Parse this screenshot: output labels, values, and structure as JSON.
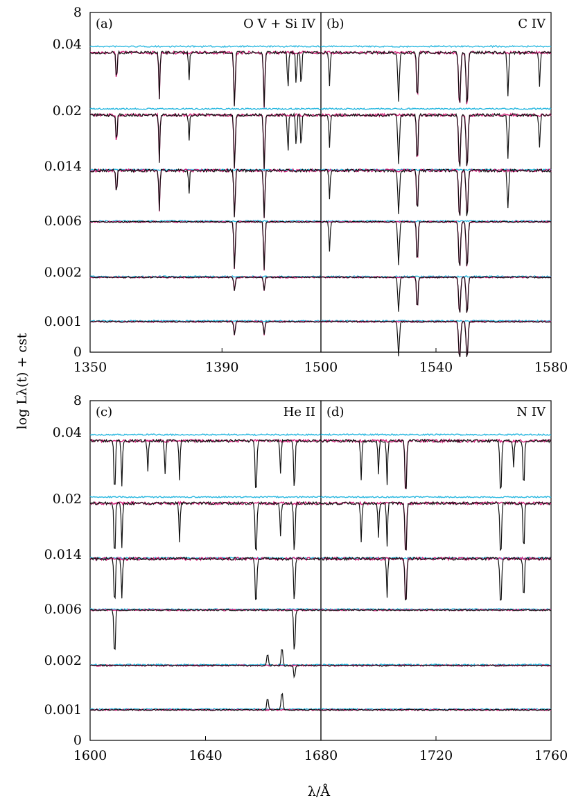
{
  "figure": {
    "ylabel": "log Lλ(t) + cst",
    "xlabel": "λ/Å"
  },
  "colors": {
    "black_spectrum": "#111111",
    "magenta_spectrum": "#d2227a",
    "cyan_spectrum": "#2ab8e0",
    "axes": "#000000"
  },
  "chart_data": [
    {
      "type": "line",
      "panel": "(a)",
      "ion": "O V + Si IV",
      "xtick_labels": [
        "1350",
        "1390"
      ],
      "ytick_labels": [
        "8",
        "0.04",
        "0.02",
        "0.014",
        "0.006",
        "0.002",
        "0.001",
        "0"
      ],
      "xlim": [
        1350,
        1420
      ],
      "ages": [
        8,
        0.04,
        0.02,
        0.014,
        0.006,
        0.002,
        0.001,
        0
      ],
      "lines": [
        {
          "center": 1358.0,
          "depth": 0.55,
          "width": 0.25,
          "color": "magenta",
          "from_age": 0.014
        },
        {
          "center": 1371.0,
          "depth": 0.85,
          "width": 0.25,
          "color": "magenta",
          "from_age": 0.014
        },
        {
          "center": 1380.0,
          "depth": 0.5,
          "width": 0.22,
          "color": "black",
          "from_age": 0.014
        },
        {
          "center": 1393.8,
          "depth": 1.0,
          "width": 0.3,
          "color": "magenta",
          "from_age": 0.001
        },
        {
          "center": 1402.8,
          "depth": 1.0,
          "width": 0.3,
          "color": "magenta",
          "from_age": 0.001
        },
        {
          "center": 1410.0,
          "depth": 0.7,
          "width": 0.25,
          "color": "black",
          "from_age": 0.02
        },
        {
          "center": 1412.5,
          "depth": 0.6,
          "width": 0.25,
          "color": "black",
          "from_age": 0.02
        },
        {
          "center": 1414.0,
          "depth": 0.65,
          "width": 0.25,
          "color": "black",
          "from_age": 0.02
        }
      ]
    },
    {
      "type": "line",
      "panel": "(b)",
      "ion": "C IV",
      "xtick_labels": [
        "1500",
        "1540",
        "1580"
      ],
      "xlim": [
        1500,
        1580
      ],
      "lines": [
        {
          "center": 1503.0,
          "depth": 0.6,
          "width": 0.3,
          "color": "black",
          "from_age": 0.006
        },
        {
          "center": 1527.0,
          "depth": 0.9,
          "width": 0.4,
          "color": "black",
          "from_age": 0.001
        },
        {
          "center": 1533.5,
          "depth": 0.9,
          "width": 0.35,
          "color": "magenta",
          "from_age": 0.002
        },
        {
          "center": 1548.2,
          "depth": 1.0,
          "width": 0.45,
          "color": "magenta",
          "from_age": 0.001
        },
        {
          "center": 1550.8,
          "depth": 1.0,
          "width": 0.45,
          "color": "magenta",
          "from_age": 0.001
        },
        {
          "center": 1565.0,
          "depth": 0.8,
          "width": 0.35,
          "color": "black",
          "from_age": 0.014
        },
        {
          "center": 1576.0,
          "depth": 0.6,
          "width": 0.3,
          "color": "black",
          "from_age": 0.02
        }
      ]
    },
    {
      "type": "line",
      "panel": "(c)",
      "ion": "He II",
      "xtick_labels": [
        "1600",
        "1640"
      ],
      "ytick_labels": [
        "8",
        "0.04",
        "0.02",
        "0.014",
        "0.006",
        "0.002",
        "0.001",
        "0"
      ],
      "xlim": [
        1600,
        1680
      ],
      "lines": [
        {
          "center": 1608.5,
          "depth": 1.0,
          "width": 0.35,
          "color": "black",
          "from_age": 0.006
        },
        {
          "center": 1611.0,
          "depth": 0.8,
          "width": 0.3,
          "color": "black",
          "from_age": 0.014
        },
        {
          "center": 1620.0,
          "depth": 0.55,
          "width": 0.3,
          "color": "black",
          "from_age": 0.04
        },
        {
          "center": 1626.0,
          "depth": 0.6,
          "width": 0.3,
          "color": "black",
          "from_age": 0.04
        },
        {
          "center": 1631.0,
          "depth": 0.7,
          "width": 0.3,
          "color": "black",
          "from_age": 0.02
        },
        {
          "center": 1657.5,
          "depth": 1.0,
          "width": 0.4,
          "color": "black",
          "from_age": 0.014
        },
        {
          "center": 1666.0,
          "depth": 0.6,
          "width": 0.3,
          "color": "black",
          "from_age": 0.02
        },
        {
          "center": 1670.8,
          "depth": 0.95,
          "width": 0.35,
          "color": "black",
          "from_age": 0.002
        },
        {
          "center": 1661.5,
          "depth": -0.9,
          "width": 0.4,
          "color": "black",
          "from_age": 0.001,
          "until_age": 0.002
        },
        {
          "center": 1666.5,
          "depth": -1.4,
          "width": 0.4,
          "color": "black",
          "from_age": 0.001,
          "until_age": 0.002
        }
      ]
    },
    {
      "type": "line",
      "panel": "(d)",
      "ion": "N IV",
      "xtick_labels": [
        "1680",
        "1720",
        "1760"
      ],
      "xlim": [
        1680,
        1760
      ],
      "lines": [
        {
          "center": 1694.0,
          "depth": 0.7,
          "width": 0.3,
          "color": "black",
          "from_age": 0.02
        },
        {
          "center": 1700.0,
          "depth": 0.6,
          "width": 0.3,
          "color": "black",
          "from_age": 0.02
        },
        {
          "center": 1703.0,
          "depth": 0.8,
          "width": 0.3,
          "color": "black",
          "from_age": 0.014
        },
        {
          "center": 1709.5,
          "depth": 1.0,
          "width": 0.4,
          "color": "magenta",
          "from_age": 0.014
        },
        {
          "center": 1742.5,
          "depth": 1.0,
          "width": 0.4,
          "color": "black",
          "from_age": 0.014
        },
        {
          "center": 1747.0,
          "depth": 0.5,
          "width": 0.3,
          "color": "black",
          "from_age": 0.04
        },
        {
          "center": 1750.5,
          "depth": 0.9,
          "width": 0.35,
          "color": "black",
          "from_age": 0.014
        }
      ]
    }
  ]
}
